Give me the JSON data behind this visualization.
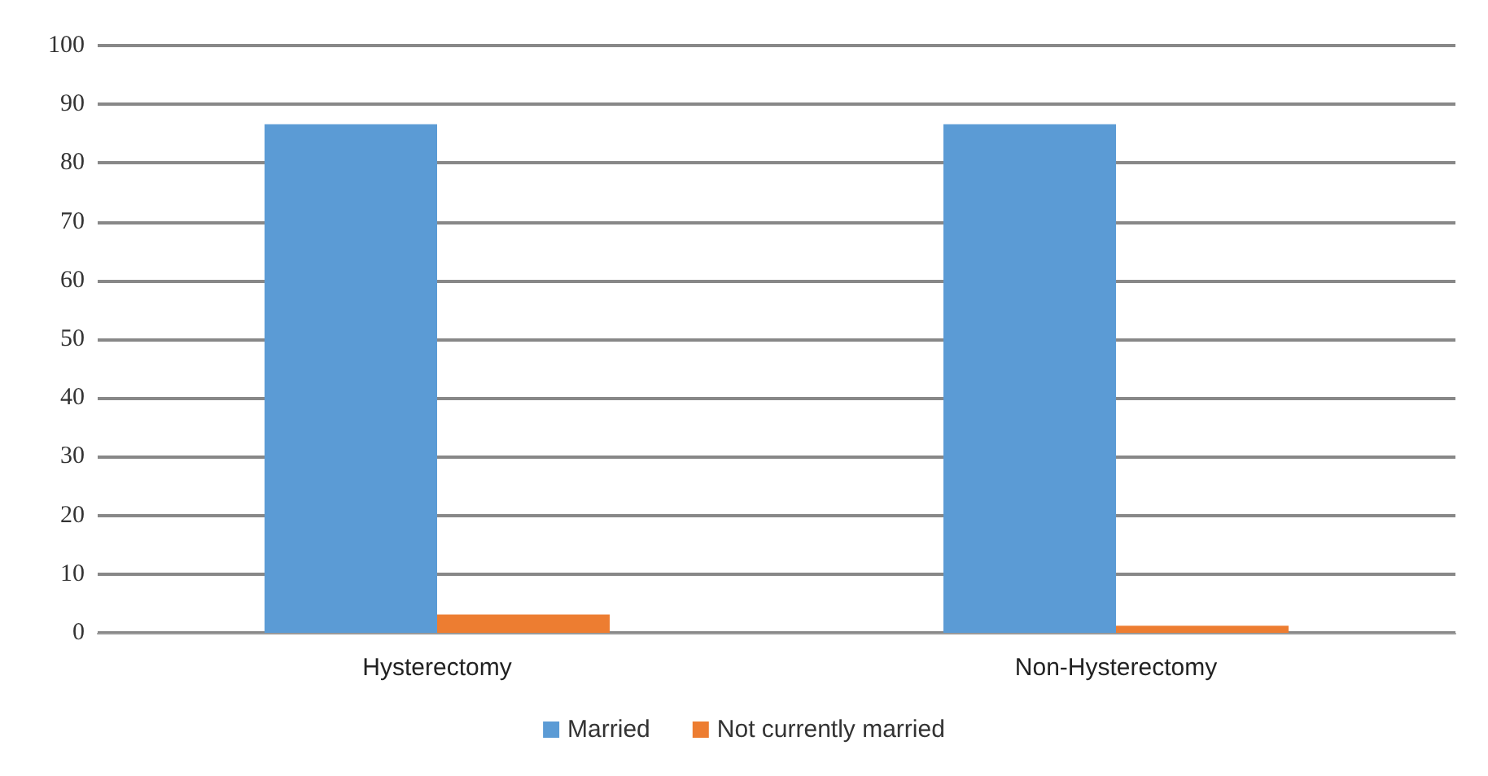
{
  "chart_data": {
    "type": "bar",
    "categories": [
      "Hysterectomy",
      "Non-Hysterectomy"
    ],
    "series": [
      {
        "name": "Married",
        "color": "#5b9bd5",
        "values": [
          86.6,
          86.6
        ]
      },
      {
        "name": "Not currently married",
        "color": "#ed7d31",
        "values": [
          3.1,
          1.2
        ]
      }
    ],
    "ylim": [
      0,
      100
    ],
    "yticks": [
      0,
      10,
      20,
      30,
      40,
      50,
      60,
      70,
      80,
      90,
      100
    ],
    "grid": "y",
    "legend": "bottom"
  }
}
